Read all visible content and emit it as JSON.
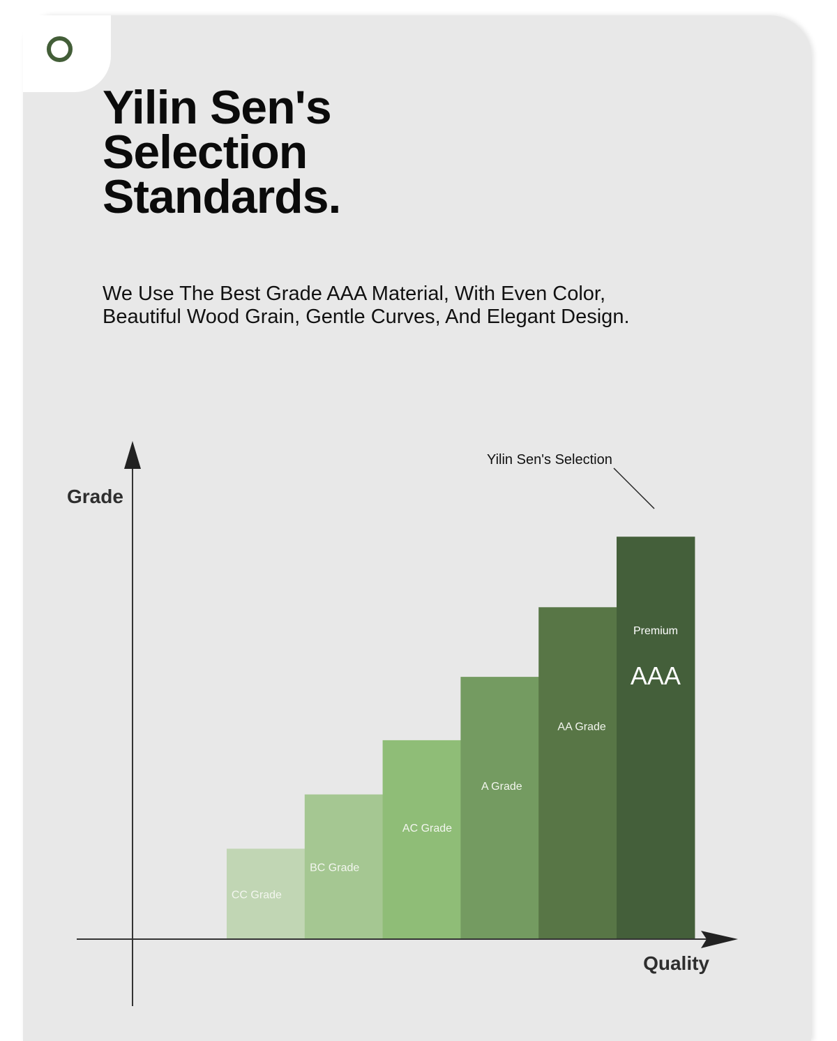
{
  "header": {
    "title_lines": [
      "Yilin Sen's",
      "Selection",
      "Standards."
    ],
    "subtitle_lines": [
      "We Use The Best Grade AAA Material, With Even Color,",
      "Beautiful Wood Grain, Gentle Curves, And Elegant Design."
    ]
  },
  "colors": {
    "accent": "#435e38",
    "card_background": "#e8e8e8"
  },
  "chart_data": {
    "type": "bar",
    "xlabel": "Quality",
    "ylabel": "Grade",
    "categories": [
      "CC Grade",
      "BC Grade",
      "AC Grade",
      "A Grade",
      "AA Grade",
      "AAA"
    ],
    "values": [
      1.0,
      1.6,
      2.2,
      2.9,
      3.67,
      4.45
    ],
    "ylim": [
      0,
      5.1
    ],
    "colors": [
      "#c1d6b4",
      "#a5c792",
      "#8fbd77",
      "#749b61",
      "#587646",
      "#445f3a"
    ],
    "grid": false,
    "legend": "none",
    "annotations": {
      "callout": "Yilin Sen's Selection",
      "premium_small": "Premium",
      "premium_big": "AAA"
    }
  }
}
